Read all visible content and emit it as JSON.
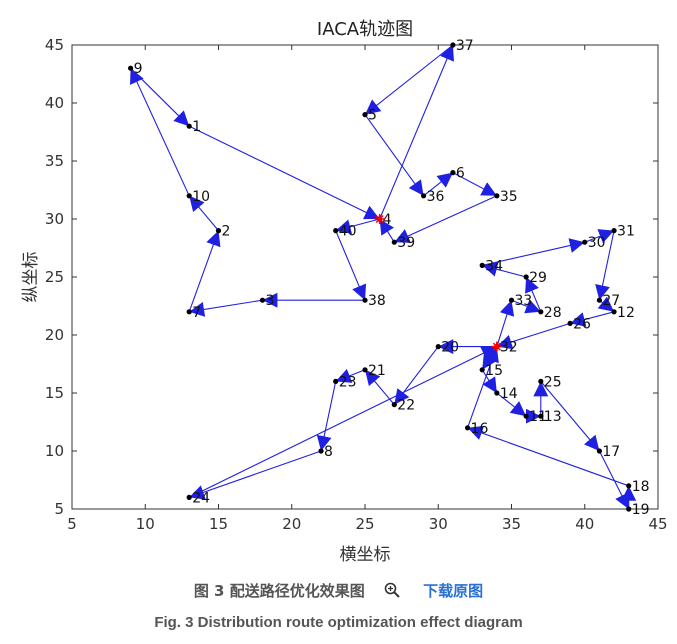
{
  "chart_data": {
    "type": "scatter",
    "title": "IACA轨迹图",
    "xlabel": "横坐标",
    "ylabel": "纵坐标",
    "xlim": [
      5,
      45
    ],
    "ylim": [
      5,
      45
    ],
    "xticks": [
      5,
      10,
      15,
      20,
      25,
      30,
      35,
      40,
      45
    ],
    "yticks": [
      5,
      10,
      15,
      20,
      25,
      30,
      35,
      40,
      45
    ],
    "grid": false,
    "point_color": "#000000",
    "route_color": "#2020e0",
    "depot_color": "#ff0000",
    "depots": [
      [
        26,
        30
      ],
      [
        34,
        19
      ]
    ],
    "points": [
      {
        "label": "1",
        "x": 13,
        "y": 38
      },
      {
        "label": "2",
        "x": 15,
        "y": 29
      },
      {
        "label": "3",
        "x": 18,
        "y": 23
      },
      {
        "label": "4",
        "x": 26,
        "y": 30
      },
      {
        "label": "5",
        "x": 25,
        "y": 39
      },
      {
        "label": "6",
        "x": 31,
        "y": 34
      },
      {
        "label": "7",
        "x": 13,
        "y": 22
      },
      {
        "label": "8",
        "x": 22,
        "y": 10
      },
      {
        "label": "9",
        "x": 9,
        "y": 43
      },
      {
        "label": "10",
        "x": 13,
        "y": 32
      },
      {
        "label": "11",
        "x": 36,
        "y": 13
      },
      {
        "label": "12",
        "x": 42,
        "y": 22
      },
      {
        "label": "13",
        "x": 37,
        "y": 13
      },
      {
        "label": "14",
        "x": 34,
        "y": 15
      },
      {
        "label": "15",
        "x": 33,
        "y": 17
      },
      {
        "label": "16",
        "x": 32,
        "y": 12
      },
      {
        "label": "17",
        "x": 41,
        "y": 10
      },
      {
        "label": "18",
        "x": 43,
        "y": 7
      },
      {
        "label": "19",
        "x": 43,
        "y": 5
      },
      {
        "label": "20",
        "x": 30,
        "y": 19
      },
      {
        "label": "21",
        "x": 25,
        "y": 17
      },
      {
        "label": "22",
        "x": 27,
        "y": 14
      },
      {
        "label": "23",
        "x": 23,
        "y": 16
      },
      {
        "label": "24",
        "x": 13,
        "y": 6
      },
      {
        "label": "25",
        "x": 37,
        "y": 16
      },
      {
        "label": "26",
        "x": 39,
        "y": 21
      },
      {
        "label": "27",
        "x": 41,
        "y": 23
      },
      {
        "label": "28",
        "x": 37,
        "y": 22
      },
      {
        "label": "29",
        "x": 36,
        "y": 25
      },
      {
        "label": "30",
        "x": 40,
        "y": 28
      },
      {
        "label": "31",
        "x": 42,
        "y": 29
      },
      {
        "label": "32",
        "x": 34,
        "y": 19
      },
      {
        "label": "33",
        "x": 35,
        "y": 23
      },
      {
        "label": "34",
        "x": 33,
        "y": 26
      },
      {
        "label": "35",
        "x": 34,
        "y": 32
      },
      {
        "label": "36",
        "x": 29,
        "y": 32
      },
      {
        "label": "37",
        "x": 31,
        "y": 45
      },
      {
        "label": "38",
        "x": 25,
        "y": 23
      },
      {
        "label": "39",
        "x": 27,
        "y": 28
      },
      {
        "label": "40",
        "x": 23,
        "y": 29
      }
    ],
    "routes": [
      [
        [
          26,
          30
        ],
        [
          23,
          29
        ],
        [
          25,
          23
        ],
        [
          18,
          23
        ],
        [
          13,
          22
        ],
        [
          15,
          29
        ],
        [
          13,
          32
        ],
        [
          9,
          43
        ],
        [
          13,
          38
        ],
        [
          26,
          30
        ]
      ],
      [
        [
          26,
          30
        ],
        [
          31,
          45
        ],
        [
          25,
          39
        ],
        [
          29,
          32
        ],
        [
          31,
          34
        ],
        [
          34,
          32
        ],
        [
          27,
          28
        ],
        [
          26,
          30
        ]
      ],
      [
        [
          34,
          19
        ],
        [
          35,
          23
        ],
        [
          37,
          22
        ],
        [
          36,
          25
        ],
        [
          33,
          26
        ],
        [
          40,
          28
        ],
        [
          42,
          29
        ],
        [
          41,
          23
        ],
        [
          42,
          22
        ],
        [
          39,
          21
        ],
        [
          34,
          19
        ]
      ],
      [
        [
          34,
          19
        ],
        [
          33,
          17
        ],
        [
          34,
          15
        ],
        [
          36,
          13
        ],
        [
          37,
          13
        ],
        [
          37,
          16
        ],
        [
          41,
          10
        ],
        [
          43,
          5
        ],
        [
          43,
          7
        ],
        [
          32,
          12
        ],
        [
          34,
          19
        ]
      ],
      [
        [
          34,
          19
        ],
        [
          30,
          19
        ],
        [
          27,
          14
        ],
        [
          25,
          17
        ],
        [
          23,
          16
        ],
        [
          22,
          10
        ],
        [
          13,
          6
        ],
        [
          34,
          19
        ]
      ]
    ]
  },
  "caption": {
    "zh_text": "图 3 配送路径优化效果图",
    "zoom_icon": "magnifier-plus-icon",
    "download_label": "下载原图",
    "en_text": "Fig. 3 Distribution route optimization effect diagram"
  }
}
